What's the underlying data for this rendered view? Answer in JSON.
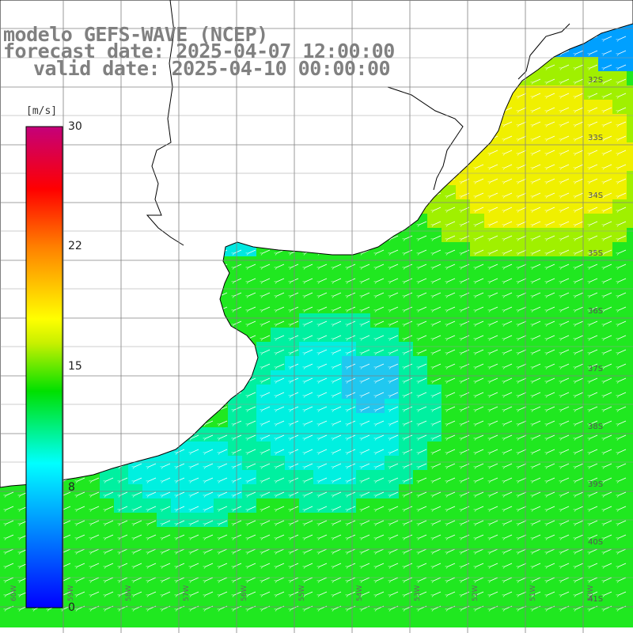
{
  "title": {
    "line1": "modelo GEFS-WAVE (NCEP)",
    "line2": "forecast date: 2025-04-07 12:00:00",
    "line3": "valid date: 2025-04-10 00:00:00"
  },
  "colorbar": {
    "unit": "[m/s]",
    "ticks": [
      "30",
      "22",
      "15",
      "8",
      "0"
    ],
    "colors": [
      "#c4007a",
      "#ff0000",
      "#ff8000",
      "#ffff00",
      "#00e000",
      "#00ffff",
      "#0000ff"
    ]
  },
  "lat_labels": [
    "32S",
    "33S",
    "34S",
    "35S",
    "36S",
    "37S",
    "38S",
    "39S",
    "40S",
    "41S"
  ],
  "lon_labels": [
    "60W",
    "59W",
    "58W",
    "57W",
    "56W",
    "55W",
    "54W",
    "53W",
    "52W",
    "51W",
    "50W"
  ],
  "map": {
    "field": "wind speed",
    "arrow_direction": "southwest",
    "land_color": "#ffffff",
    "grid_color": "#808080",
    "coast_color": "#000000"
  }
}
